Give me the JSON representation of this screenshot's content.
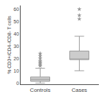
{
  "chart_data": {
    "type": "box",
    "categories": [
      "Controls",
      "Cases"
    ],
    "stats": [
      {
        "median": 3.0,
        "q1": 1.5,
        "q3": 5.0,
        "whisker_low": 0.0,
        "whisker_high": 12.0,
        "outliers": [
          14,
          15,
          16,
          17,
          18,
          20,
          22,
          24
        ]
      },
      {
        "median": 19.0,
        "q1": 19.0,
        "q3": 26.0,
        "whisker_low": 10.0,
        "whisker_high": 38.0,
        "outliers": [
          52,
          55,
          60
        ]
      }
    ],
    "ylabel": "% CD3+/CD4-/CD8- T cells",
    "ylim": [
      -1,
      63
    ],
    "yticks": [
      0,
      10,
      20,
      30,
      40,
      50,
      60
    ],
    "color": "#999999",
    "marker": "star",
    "grid": false
  }
}
